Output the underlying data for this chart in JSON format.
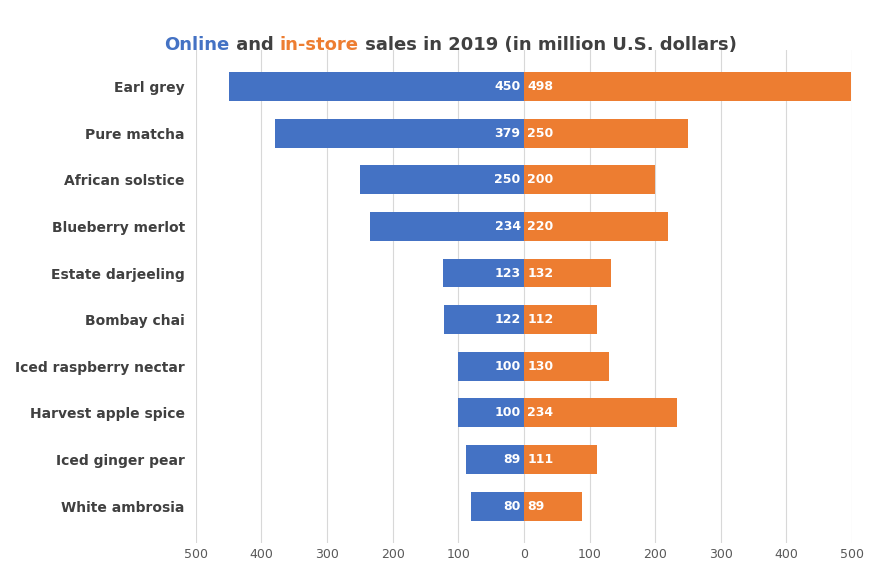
{
  "categories": [
    "White ambrosia",
    "Iced ginger pear",
    "Harvest apple spice",
    "Iced raspberry nectar",
    "Bombay chai",
    "Estate darjeeling",
    "Blueberry merlot",
    "African solstice",
    "Pure matcha",
    "Earl grey"
  ],
  "online": [
    80,
    89,
    100,
    100,
    122,
    123,
    234,
    250,
    379,
    450
  ],
  "instore": [
    89,
    111,
    234,
    130,
    112,
    132,
    220,
    200,
    250,
    498
  ],
  "online_color": "#4472C4",
  "instore_color": "#ED7D31",
  "title_online": "Online",
  "title_and": " and ",
  "title_instore": "in-store",
  "title_suffix": " sales in 2019 (in million U.S. dollars)",
  "online_color_text": "#4472C4",
  "instore_color_text": "#ED7D31",
  "title_suffix_color": "#404040",
  "xlim": [
    -500,
    500
  ],
  "background_color": "#FFFFFF",
  "bar_label_fontsize": 9,
  "category_fontsize": 10,
  "title_fontsize": 13,
  "gridline_color": "#D8D8D8",
  "tick_label_color": "#595959"
}
